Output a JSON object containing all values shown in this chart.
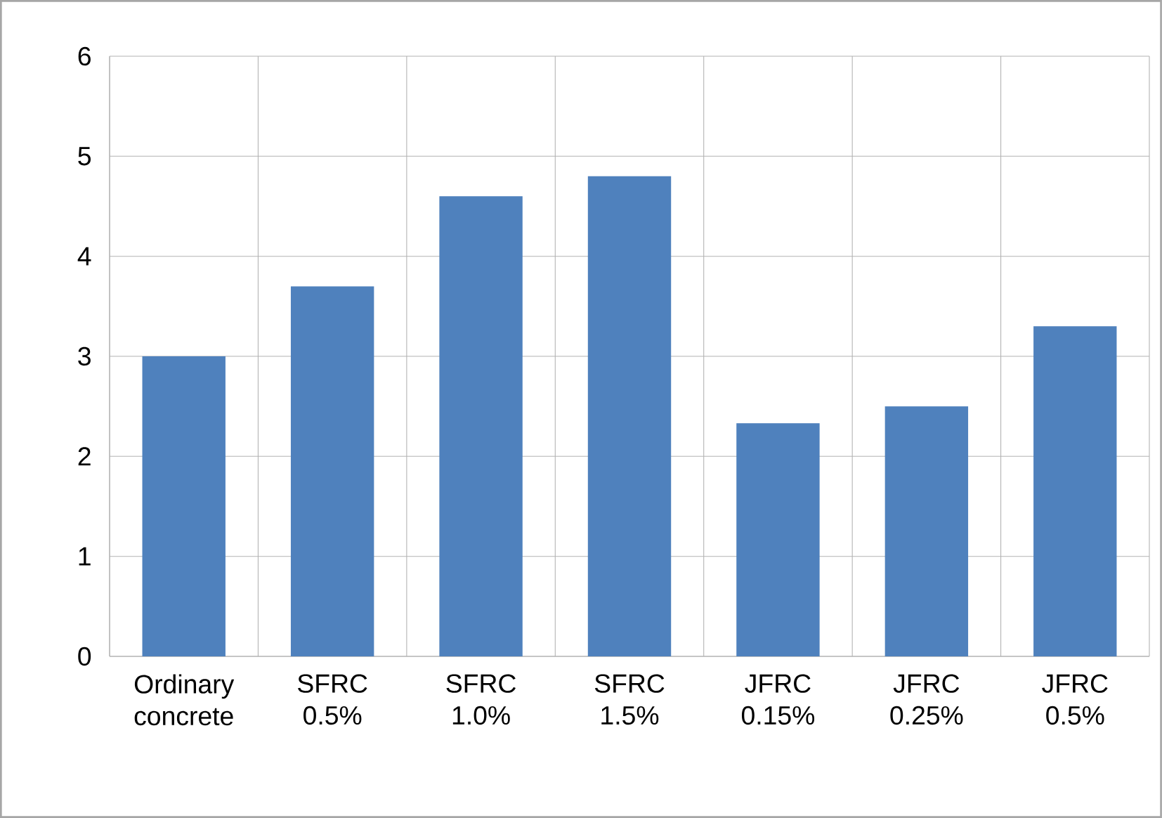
{
  "chart_data": {
    "type": "bar",
    "categories": [
      "Ordinary concrete",
      "SFRC 0.5%",
      "SFRC 1.0%",
      "SFRC 1.5%",
      "JFRC 0.15%",
      "JFRC 0.25%",
      "JFRC 0.5%"
    ],
    "values": [
      3.0,
      3.7,
      4.6,
      4.8,
      2.33,
      2.5,
      3.3
    ],
    "color": "#4f81bd",
    "ylim": [
      0,
      6
    ],
    "yticks": [
      0,
      1,
      2,
      3,
      4,
      5,
      6
    ],
    "grid": true
  }
}
